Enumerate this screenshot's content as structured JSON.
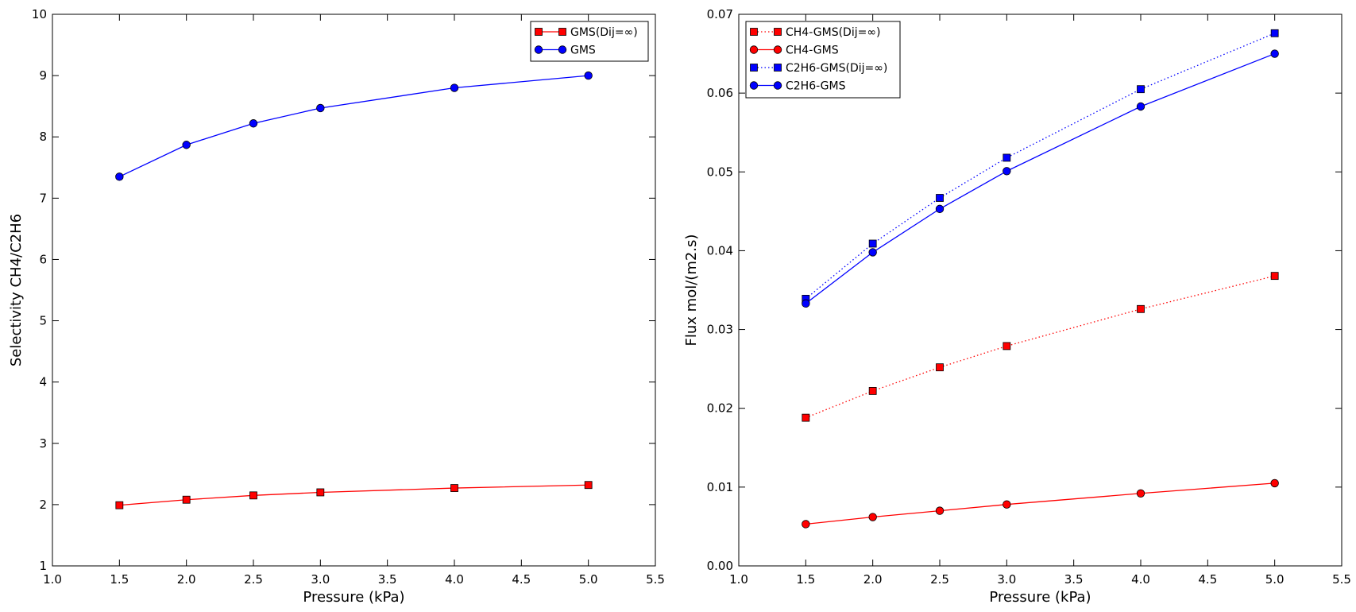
{
  "colors": {
    "red": "#ff0000",
    "blue": "#0000ff",
    "axis": "#000000",
    "background": "#ffffff"
  },
  "chart_data": [
    {
      "type": "line",
      "title": "",
      "xlabel": "Pressure (kPa)",
      "ylabel": "Selectivity CH4/C2H6",
      "xlim": [
        1.0,
        5.5
      ],
      "ylim": [
        1,
        10
      ],
      "xticks": [
        "1.0",
        "1.5",
        "2.0",
        "2.5",
        "3.0",
        "3.5",
        "4.0",
        "4.5",
        "5.0",
        "5.5"
      ],
      "yticks": [
        "1",
        "2",
        "3",
        "4",
        "5",
        "6",
        "7",
        "8",
        "9",
        "10"
      ],
      "grid": false,
      "legend_position": "top-right",
      "x": [
        1.5,
        2.0,
        2.5,
        3.0,
        4.0,
        5.0
      ],
      "series": [
        {
          "name": "GMS(Dij=∞)",
          "values": [
            1.99,
            2.08,
            2.15,
            2.2,
            2.27,
            2.32
          ],
          "color": "#ff0000",
          "marker": "square",
          "linestyle": "solid"
        },
        {
          "name": "GMS",
          "values": [
            7.35,
            7.87,
            8.22,
            8.47,
            8.8,
            9.0
          ],
          "color": "#0000ff",
          "marker": "circle",
          "linestyle": "solid"
        }
      ]
    },
    {
      "type": "line",
      "title": "",
      "xlabel": "Pressure (kPa)",
      "ylabel": "Flux mol/(m2.s)",
      "xlim": [
        1.0,
        5.5
      ],
      "ylim": [
        0.0,
        0.07
      ],
      "xticks": [
        "1.0",
        "1.5",
        "2.0",
        "2.5",
        "3.0",
        "3.5",
        "4.0",
        "4.5",
        "5.0",
        "5.5"
      ],
      "yticks": [
        "0.00",
        "0.01",
        "0.02",
        "0.03",
        "0.04",
        "0.05",
        "0.06",
        "0.07"
      ],
      "grid": false,
      "legend_position": "top-left",
      "x": [
        1.5,
        2.0,
        2.5,
        3.0,
        4.0,
        5.0
      ],
      "series": [
        {
          "name": "CH4-GMS(Dij=∞)",
          "values": [
            0.0188,
            0.0222,
            0.0252,
            0.0279,
            0.0326,
            0.0368
          ],
          "color": "#ff0000",
          "marker": "square",
          "linestyle": "dotted"
        },
        {
          "name": "CH4-GMS",
          "values": [
            0.0053,
            0.0062,
            0.007,
            0.0078,
            0.0092,
            0.0105
          ],
          "color": "#ff0000",
          "marker": "circle",
          "linestyle": "solid"
        },
        {
          "name": "C2H6-GMS(Dij=∞)",
          "values": [
            0.0339,
            0.0409,
            0.0467,
            0.0518,
            0.0605,
            0.0676
          ],
          "color": "#0000ff",
          "marker": "square",
          "linestyle": "dotted"
        },
        {
          "name": "C2H6-GMS",
          "values": [
            0.0333,
            0.0398,
            0.0453,
            0.0501,
            0.0583,
            0.065
          ],
          "color": "#0000ff",
          "marker": "circle",
          "linestyle": "solid"
        }
      ]
    }
  ]
}
